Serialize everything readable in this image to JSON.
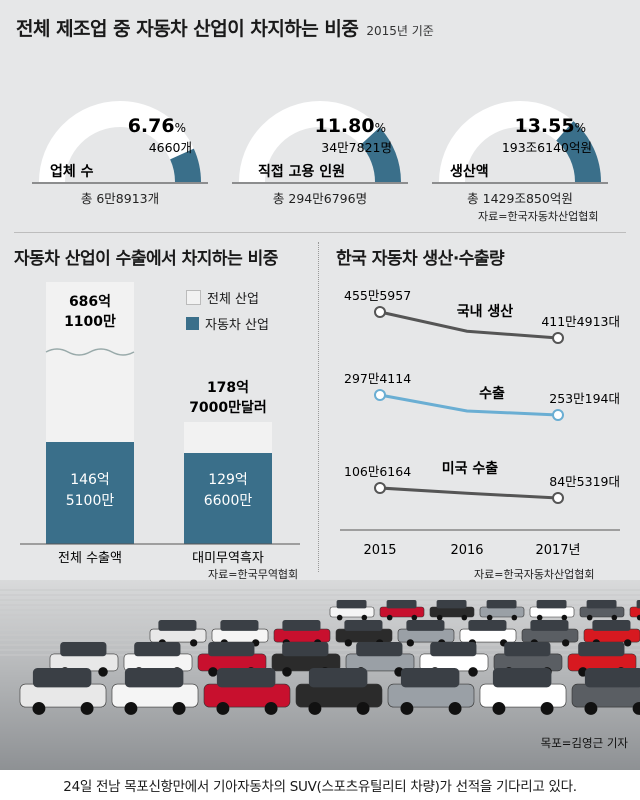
{
  "header": {
    "title": "전체 제조업 중 자동차 산업이 차지하는 비중",
    "subtitle": "2015년 기준"
  },
  "colors": {
    "auto": "#3a6f8a",
    "total": "#f2f2f2",
    "gauge_bg": "#ffffff",
    "line": "#555555",
    "export_line": "#6aaed3",
    "background": "#e6e7e8"
  },
  "gauges": [
    {
      "label": "업체 수",
      "pct_text": "6.76",
      "pct_sign": "%",
      "value": "4660개",
      "total": "총 6만8913개",
      "fraction": 0.0676
    },
    {
      "label": "직접 고용 인원",
      "pct_text": "11.80",
      "pct_sign": "%",
      "value": "34만7821명",
      "total": "총 294만6796명",
      "fraction": 0.118
    },
    {
      "label": "생산액",
      "pct_text": "13.55",
      "pct_sign": "%",
      "value": "193조6140억원",
      "total": "총 1429조850억원",
      "fraction": 0.1355
    }
  ],
  "gauge_source": "자료=한국자동차산업협회",
  "export_section": {
    "title": "자동차 산업이 수출에서 차지하는 비중",
    "legend": [
      {
        "label": "전체 산업",
        "color_key": "total"
      },
      {
        "label": "자동차 산업",
        "color_key": "auto"
      }
    ],
    "bars": [
      {
        "category": "전체 수출액",
        "total_label_1": "686억",
        "total_label_2": "1100만",
        "auto_label_1": "146억",
        "auto_label_2": "5100만"
      },
      {
        "category": "대미무역흑자",
        "total_label_1": "178억",
        "total_label_2": "7000만달러",
        "auto_label_1": "129억",
        "auto_label_2": "6600만"
      }
    ],
    "source": "자료=한국무역협회"
  },
  "line_section": {
    "title": "한국 자동차 생산·수출량",
    "x_labels": [
      "2015",
      "2016",
      "2017년"
    ],
    "series": [
      {
        "name": "국내 생산",
        "start_label": "455만5957",
        "end_label": "411만4913대",
        "color_key": "line"
      },
      {
        "name": "수출",
        "start_label": "297만4114",
        "end_label": "253만194대",
        "color_key": "export_line"
      },
      {
        "name": "미국 수출",
        "start_label": "106만6164",
        "end_label": "84만5319대",
        "color_key": "line"
      }
    ],
    "source": "자료=한국자동차산업협회"
  },
  "chart_data": [
    {
      "type": "pie",
      "title": "전체 제조업 중 자동차 산업이 차지하는 비중",
      "subtitle": "2015년 기준",
      "categories": [
        "업체 수",
        "직접 고용 인원",
        "생산액"
      ],
      "values": [
        6.76,
        11.8,
        13.55
      ],
      "unit": "%"
    },
    {
      "type": "bar",
      "title": "자동차 산업이 수출에서 차지하는 비중",
      "categories": [
        "전체 수출액",
        "대미무역흑자"
      ],
      "series": [
        {
          "name": "전체 산업",
          "values": [
            68611000000,
            17870000000
          ]
        },
        {
          "name": "자동차 산업",
          "values": [
            14651000000,
            12966000000
          ]
        }
      ]
    },
    {
      "type": "line",
      "title": "한국 자동차 생산·수출량",
      "x": [
        2015,
        2016,
        2017
      ],
      "series": [
        {
          "name": "국내 생산",
          "values": [
            4555957,
            4229000,
            4114913
          ]
        },
        {
          "name": "수출",
          "values": [
            2974114,
            2620000,
            2530194
          ]
        },
        {
          "name": "미국 수출",
          "values": [
            1066164,
            950000,
            845319
          ]
        }
      ]
    }
  ],
  "photo": {
    "credit": "목포=김영근 기자",
    "caption": "24일 전남 목포신항만에서 기아자동차의 SUV(스포츠유틸리티 차량)가 선적을 기다리고 있다."
  }
}
